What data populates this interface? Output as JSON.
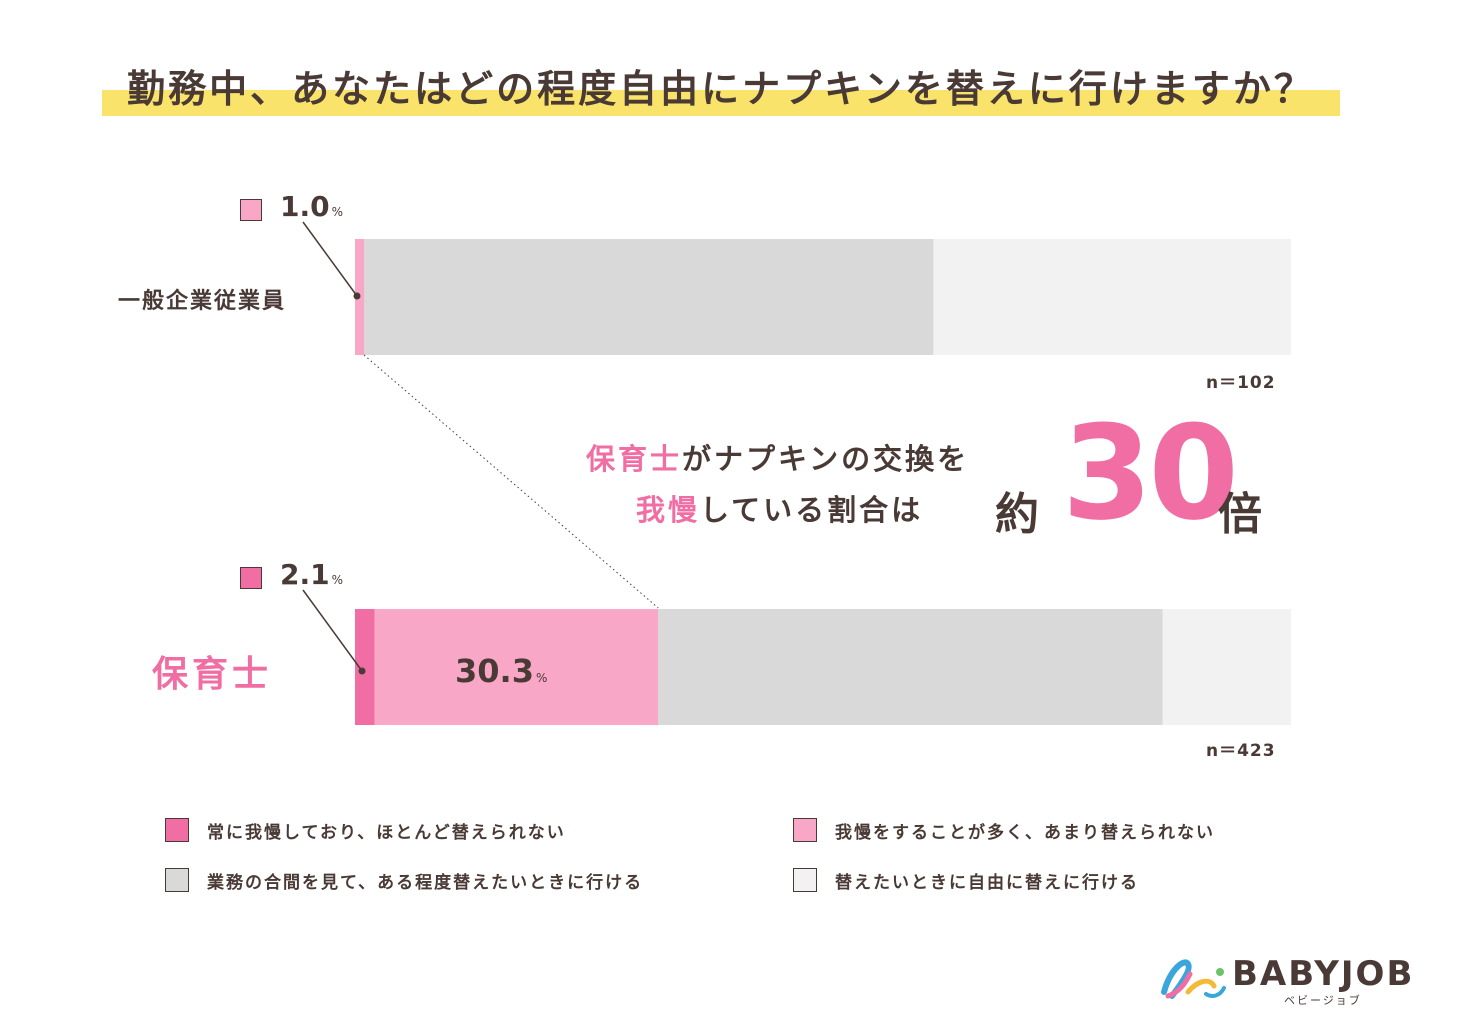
{
  "title": "勤務中、あなたはどの程度自由にナプキンを替えに行けますか？",
  "colors": {
    "always_endure": "#f06ea3",
    "often_endure": "#f9a7c6",
    "somewhat_free": "#d9d9d9",
    "free": "#f2f2f2",
    "text": "#4a3a35",
    "accent": "#f06ea3",
    "highlight": "#f9e36b"
  },
  "chart_data": {
    "type": "bar",
    "orientation": "horizontal-stacked",
    "title": "勤務中、あなたはどの程度自由にナプキンを替えに行けますか？",
    "unit": "%",
    "categories": [
      "一般企業従業員",
      "保育士"
    ],
    "series": [
      {
        "name": "常に我慢しており、ほとんど替えられない",
        "color_key": "always_endure",
        "values": [
          0,
          2.1
        ]
      },
      {
        "name": "我慢をすることが多く、あまり替えられない",
        "color_key": "often_endure",
        "values": [
          1.0,
          30.3
        ]
      },
      {
        "name": "業務の合間を見て、ある程度替えたいときに行ける",
        "color_key": "somewhat_free",
        "values": [
          60.8,
          53.9
        ]
      },
      {
        "name": "替えたいときに自由に替えに行ける",
        "color_key": "free",
        "values": [
          38.2,
          13.7
        ]
      }
    ],
    "sample_sizes": [
      "n＝102",
      "n＝423"
    ],
    "callouts": [
      {
        "value": "1.0",
        "unit": "%",
        "row": 0
      },
      {
        "value": "2.1",
        "unit": "%",
        "row": 1
      }
    ],
    "data_labels": [
      {
        "row": 1,
        "series": 1,
        "value": "30.3",
        "unit": "%"
      }
    ],
    "xlim": [
      0,
      100
    ]
  },
  "headline": {
    "line1_pink": "保育士",
    "line1_rest": "がナプキンの交換を",
    "line2_pink": "我慢",
    "line2_rest": "している割合は",
    "prefix": "約",
    "number": "30",
    "suffix": "倍"
  },
  "legend": [
    {
      "label": "常に我慢しており、ほとんど替えられない",
      "color_key": "always_endure"
    },
    {
      "label": "我慢をすることが多く、あまり替えられない",
      "color_key": "often_endure"
    },
    {
      "label": "業務の合間を見て、ある程度替えたいときに行ける",
      "color_key": "somewhat_free"
    },
    {
      "label": "替えたいときに自由に替えに行ける",
      "color_key": "free"
    }
  ],
  "logo": {
    "name": "BABYJOB",
    "sub": "ベビージョブ"
  }
}
